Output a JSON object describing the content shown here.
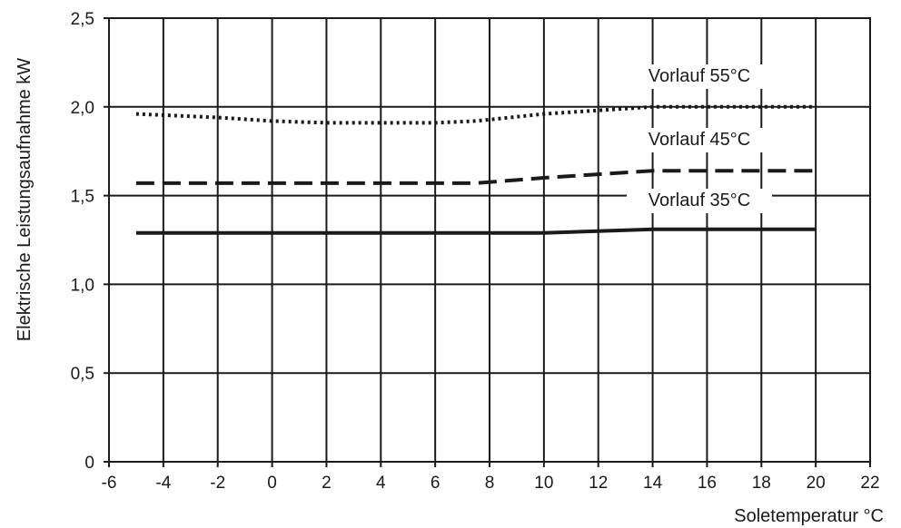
{
  "chart_data": {
    "type": "line",
    "title": "",
    "xlabel": "Soletemperatur  °C",
    "ylabel": "Elektrische Leistungsaufnahme  kW",
    "xlim": [
      -6,
      22
    ],
    "ylim": [
      0,
      2.5
    ],
    "xticks": [
      -6,
      -4,
      -2,
      0,
      2,
      4,
      6,
      8,
      10,
      12,
      14,
      16,
      18,
      20,
      22
    ],
    "xtick_labels": [
      "-6",
      "-4",
      "-2",
      "0",
      "2",
      "4",
      "6",
      "8",
      "10",
      "12",
      "14",
      "16",
      "18",
      "20",
      "22"
    ],
    "yticks": [
      0,
      0.5,
      1.0,
      1.5,
      2.0,
      2.5
    ],
    "ytick_labels": [
      "0",
      "0,5",
      "1,0",
      "1,5",
      "2,0",
      "2,5"
    ],
    "grid": true,
    "legend": "inline labels at right",
    "series": [
      {
        "name": "Vorlauf 55°C",
        "style": "dotted",
        "color": "#1a1a1a",
        "x": [
          -5,
          -2,
          0,
          2,
          4,
          6,
          7.5,
          10,
          12,
          14,
          16,
          18,
          20
        ],
        "y": [
          1.96,
          1.94,
          1.92,
          1.91,
          1.91,
          1.91,
          1.92,
          1.96,
          1.98,
          2.0,
          2.0,
          2.0,
          2.0
        ]
      },
      {
        "name": "Vorlauf 45°C",
        "style": "dashed",
        "color": "#1a1a1a",
        "x": [
          -5,
          0,
          4,
          7.5,
          10,
          12,
          14,
          16,
          18,
          20
        ],
        "y": [
          1.57,
          1.57,
          1.57,
          1.57,
          1.6,
          1.62,
          1.64,
          1.64,
          1.64,
          1.64
        ]
      },
      {
        "name": "Vorlauf 35°C",
        "style": "solid",
        "color": "#1a1a1a",
        "x": [
          -5,
          0,
          4,
          7.5,
          10,
          12,
          14,
          16,
          18,
          20
        ],
        "y": [
          1.29,
          1.29,
          1.29,
          1.29,
          1.29,
          1.3,
          1.31,
          1.31,
          1.31,
          1.31
        ]
      }
    ]
  }
}
